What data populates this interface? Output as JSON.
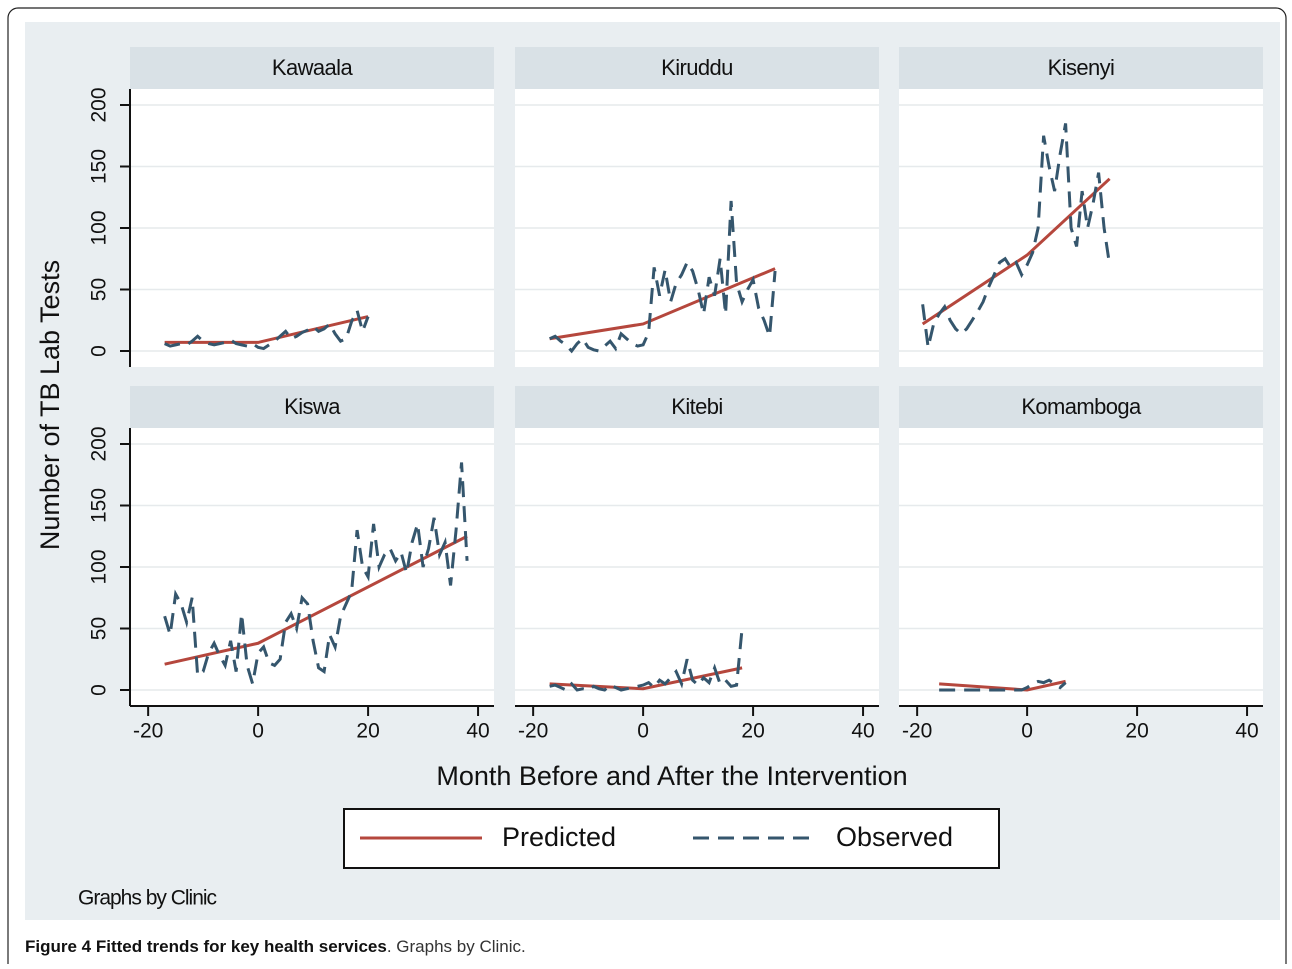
{
  "chart_data": {
    "type": "line",
    "y_label": "Number of TB Lab Tests",
    "x_label": "Month Before and After the Intervention",
    "xlim": [
      -23.3,
      42.9
    ],
    "xticks": [
      -20,
      0,
      20,
      40
    ],
    "ylim": [
      -13,
      213
    ],
    "yticks": [
      0,
      50,
      100,
      150,
      200
    ],
    "grid": true,
    "legend": "bottom",
    "note": "Graphs by Clinic",
    "series": [
      {
        "name": "Predicted",
        "color": "#b5473d",
        "dash": false
      },
      {
        "name": "Observed",
        "color": "#35566d",
        "dash": true
      }
    ],
    "panels": [
      {
        "title": "Kawaala",
        "series": [
          {
            "x": [
              -17,
              0,
              20
            ],
            "values": [
              7,
              7,
              28
            ]
          },
          {
            "x": [
              -17,
              -16,
              -15,
              -14,
              -13,
              -12,
              -11,
              -10,
              -9,
              -8,
              -7,
              -6,
              -5,
              -4,
              -3,
              -2,
              -1,
              0,
              1,
              2,
              3,
              4,
              5,
              6,
              7,
              8,
              9,
              10,
              11,
              12,
              13,
              14,
              15,
              16,
              17,
              18,
              19,
              20
            ],
            "values": [
              6,
              4,
              5,
              6,
              5,
              8,
              12,
              8,
              6,
              5,
              6,
              7,
              9,
              6,
              5,
              4,
              6,
              3,
              2,
              5,
              8,
              12,
              16,
              10,
              12,
              15,
              17,
              20,
              16,
              18,
              22,
              14,
              8,
              10,
              24,
              33,
              16,
              28
            ]
          }
        ]
      },
      {
        "title": "Kiruddu",
        "series": [
          {
            "x": [
              -17,
              0,
              24
            ],
            "values": [
              10,
              22,
              67
            ]
          },
          {
            "x": [
              -17,
              -16,
              -15,
              -14,
              -13,
              -12,
              -11,
              -10,
              -9,
              -8,
              -7,
              -6,
              -5,
              -4,
              -3,
              -2,
              -1,
              0,
              1,
              2,
              3,
              4,
              5,
              6,
              7,
              8,
              9,
              10,
              11,
              12,
              13,
              14,
              15,
              16,
              17,
              18,
              19,
              20,
              21,
              22,
              23,
              24
            ],
            "values": [
              10,
              12,
              8,
              5,
              0,
              6,
              10,
              3,
              1,
              0,
              4,
              8,
              2,
              14,
              10,
              6,
              4,
              5,
              15,
              68,
              45,
              66,
              40,
              55,
              62,
              72,
              65,
              50,
              30,
              60,
              45,
              75,
              30,
              122,
              55,
              40,
              50,
              58,
              35,
              25,
              12,
              65
            ]
          }
        ]
      },
      {
        "title": "Kisenyi",
        "series": [
          {
            "x": [
              -19,
              0,
              15
            ],
            "values": [
              22,
              78,
              140
            ]
          },
          {
            "x": [
              -19,
              -18,
              -17,
              -16,
              -15,
              -14,
              -13,
              -12,
              -11,
              -10,
              -9,
              -8,
              -7,
              -6,
              -5,
              -4,
              -3,
              -2,
              -1,
              0,
              1,
              2,
              3,
              4,
              5,
              6,
              7,
              8,
              9,
              10,
              11,
              12,
              13,
              14,
              15
            ],
            "values": [
              38,
              3,
              22,
              30,
              36,
              25,
              18,
              14,
              18,
              25,
              32,
              40,
              52,
              62,
              72,
              75,
              68,
              72,
              62,
              70,
              80,
              100,
              175,
              150,
              130,
              160,
              185,
              100,
              85,
              130,
              100,
              120,
              145,
              100,
              70
            ]
          }
        ]
      },
      {
        "title": "Kiswa",
        "series": [
          {
            "x": [
              -17,
              0,
              38
            ],
            "values": [
              21,
              38,
              125
            ]
          },
          {
            "x": [
              -17,
              -16,
              -15,
              -14,
              -13,
              -12,
              -11,
              -10,
              -9,
              -8,
              -7,
              -6,
              -5,
              -4,
              -3,
              -2,
              -1,
              0,
              1,
              2,
              3,
              4,
              5,
              6,
              7,
              8,
              9,
              10,
              11,
              12,
              13,
              14,
              15,
              16,
              17,
              18,
              19,
              20,
              21,
              22,
              23,
              24,
              25,
              26,
              27,
              28,
              29,
              30,
              31,
              32,
              33,
              34,
              35,
              36,
              37,
              38
            ],
            "values": [
              60,
              45,
              78,
              70,
              55,
              75,
              12,
              15,
              30,
              38,
              28,
              20,
              40,
              15,
              62,
              20,
              5,
              30,
              35,
              22,
              20,
              25,
              55,
              62,
              50,
              75,
              70,
              40,
              18,
              15,
              45,
              35,
              60,
              70,
              80,
              130,
              100,
              92,
              135,
              100,
              110,
              115,
              105,
              112,
              95,
              120,
              135,
              100,
              115,
              140,
              110,
              120,
              85,
              130,
              185,
              105
            ]
          }
        ]
      },
      {
        "title": "Kitebi",
        "series": [
          {
            "x": [
              -17,
              0,
              18
            ],
            "values": [
              5,
              1,
              18
            ]
          },
          {
            "x": [
              -17,
              -16,
              -15,
              -14,
              -13,
              -12,
              -11,
              -10,
              -9,
              -8,
              -7,
              -6,
              -5,
              -4,
              -3,
              -2,
              -1,
              0,
              1,
              2,
              3,
              4,
              5,
              6,
              7,
              8,
              9,
              10,
              11,
              12,
              13,
              14,
              15,
              16,
              17,
              18
            ],
            "values": [
              3,
              4,
              2,
              0,
              5,
              0,
              1,
              0,
              3,
              1,
              0,
              4,
              2,
              0,
              1,
              2,
              3,
              4,
              6,
              2,
              8,
              5,
              10,
              15,
              5,
              25,
              8,
              4,
              10,
              6,
              18,
              5,
              8,
              3,
              4,
              50
            ]
          }
        ]
      },
      {
        "title": "Komamboga",
        "series": [
          {
            "x": [
              -16,
              0,
              7
            ],
            "values": [
              5,
              0,
              7
            ]
          },
          {
            "x": [
              -16,
              -15,
              -14,
              -13,
              -12,
              -11,
              -10,
              -9,
              -8,
              -7,
              -6,
              -5,
              -4,
              -3,
              -2,
              -1,
              0,
              1,
              2,
              3,
              4,
              5,
              6,
              7
            ],
            "values": [
              0,
              0,
              0,
              0,
              0,
              0,
              0,
              0,
              0,
              0,
              0,
              0,
              0,
              0,
              0,
              0,
              2,
              5,
              7,
              6,
              8,
              5,
              2,
              6
            ]
          }
        ]
      }
    ]
  },
  "caption": {
    "label": "Figure 4 Fitted trends for key health services",
    "text": ". Graphs by Clinic."
  }
}
